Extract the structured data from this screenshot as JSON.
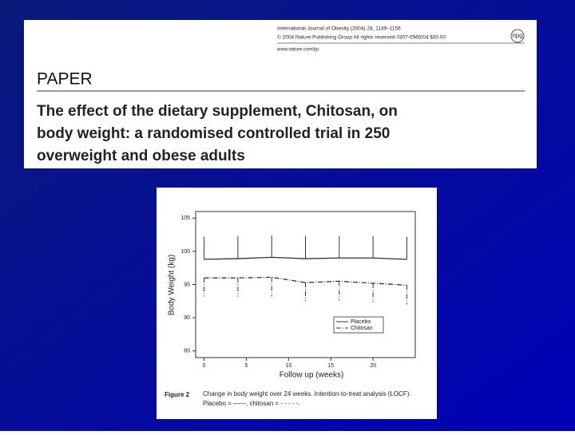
{
  "header": {
    "journal": "International Journal of Obesity (2004) 28, 1149–1156",
    "copyright": "© 2004 Nature Publishing Group  All rights reserved 0307-0565/04 $30.00",
    "url": "www.nature.com/ijo",
    "logo": "npg",
    "section": "PAPER",
    "title_lines": [
      "The effect of the dietary supplement, Chitosan, on",
      "body weight: a randomised controlled trial in 250",
      "overweight and obese adults"
    ]
  },
  "chart_data": {
    "type": "line",
    "x_label": "Follow up (weeks)",
    "y_label": "Body Weight (kg)",
    "x": [
      0,
      4,
      8,
      12,
      16,
      20,
      24
    ],
    "series": [
      {
        "name": "Placebo",
        "color": "#333333",
        "dash": "solid",
        "values": [
          98.8,
          98.9,
          99.1,
          98.9,
          99.0,
          99.0,
          98.8
        ],
        "errors": [
          3.4,
          3.4,
          3.3,
          3.4,
          3.3,
          3.3,
          3.4
        ]
      },
      {
        "name": "Chitosan",
        "color": "#333333",
        "dash": "dashdot",
        "values": [
          96.0,
          96.0,
          96.1,
          95.3,
          95.5,
          95.2,
          94.9
        ],
        "errors": [
          2.8,
          2.8,
          2.9,
          2.8,
          2.9,
          2.8,
          2.9
        ]
      }
    ],
    "xlim": [
      -1,
      25
    ],
    "ylim": [
      84,
      106
    ],
    "xticks": [
      0,
      5,
      10,
      15,
      20
    ],
    "yticks": [
      85,
      90,
      95,
      100,
      105
    ],
    "legend": "lower right",
    "caption_label": "Figure 2",
    "caption": "Change in body weight over 24 weeks. Intention-to-treat analysis (LOCF). Placebo = ——, chitosan = - - - - -."
  }
}
